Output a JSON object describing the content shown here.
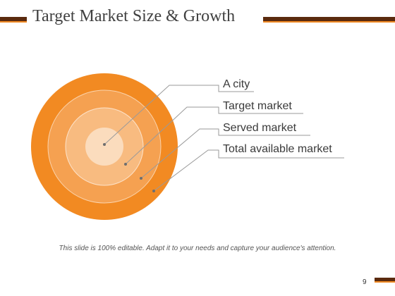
{
  "slide": {
    "title": "Target Market Size & Growth",
    "footer_note": "This slide is 100% editable. Adapt it to your needs and capture your audience's attention.",
    "page_number": "9"
  },
  "colors": {
    "accent_dark": "#5a2a0e",
    "accent_orange": "#f08a24",
    "ring_total": "#f28a22",
    "ring_served": "#f5a151",
    "ring_target": "#f8bb80",
    "ring_city": "#fbdcbd"
  },
  "rings": [
    {
      "label": "A city"
    },
    {
      "label": "Target market"
    },
    {
      "label": "Served market"
    },
    {
      "label": "Total available market"
    }
  ]
}
